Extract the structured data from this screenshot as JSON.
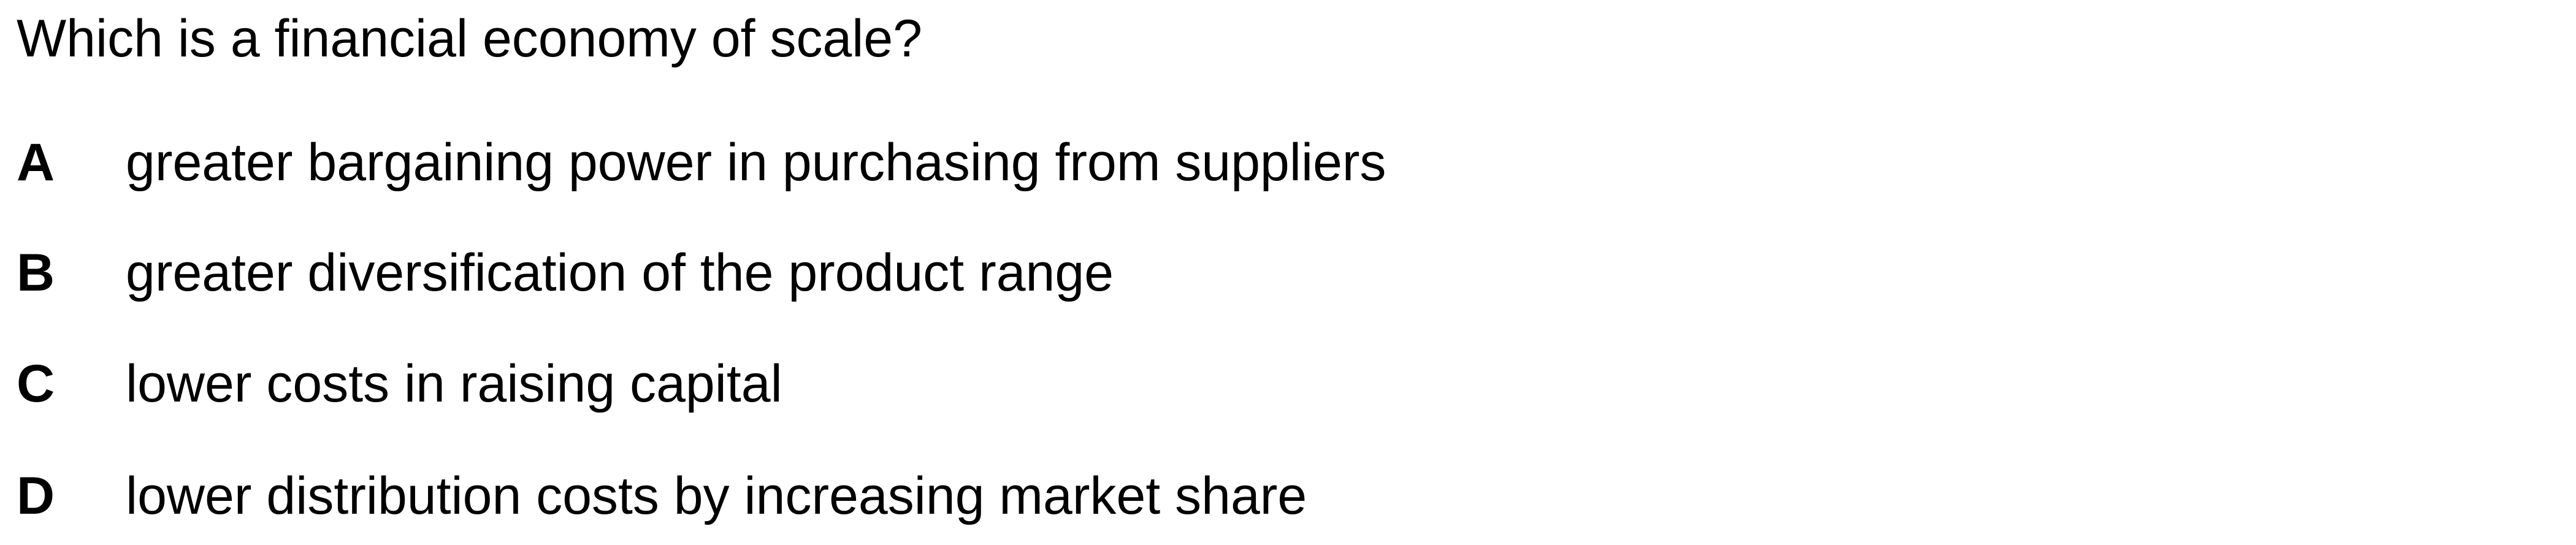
{
  "question": {
    "text": "Which is a financial economy of scale?"
  },
  "options": [
    {
      "letter": "A",
      "text": "greater bargaining power in purchasing from suppliers"
    },
    {
      "letter": "B",
      "text": "greater diversification of the product range"
    },
    {
      "letter": "C",
      "text": "lower costs in raising capital"
    },
    {
      "letter": "D",
      "text": "lower distribution costs by increasing market share"
    }
  ]
}
